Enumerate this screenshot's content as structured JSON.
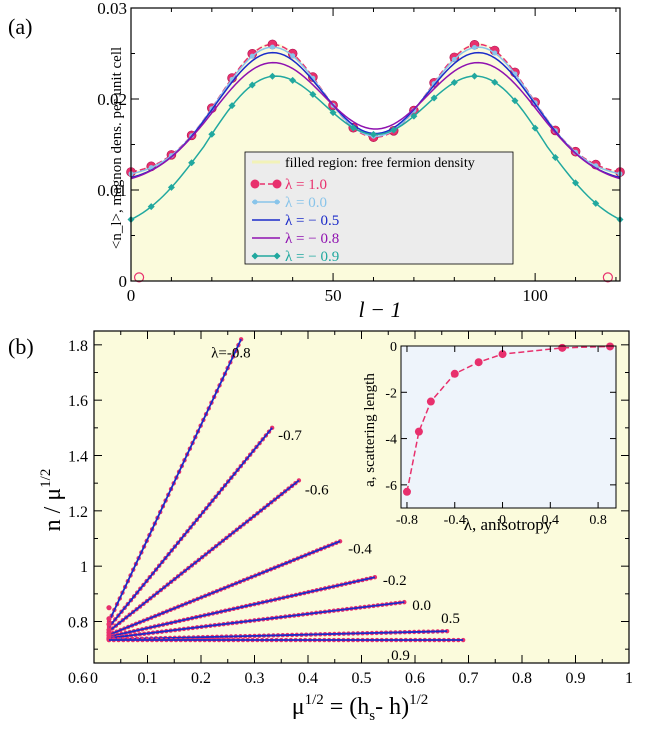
{
  "chart_data": [
    {
      "panel_label": "(a)",
      "type": "line",
      "xlabel": "l − 1",
      "ylabel": "<n_l>, magnon dens. per unit cell",
      "xlim": [
        0,
        121
      ],
      "ylim": [
        0,
        0.03
      ],
      "xticks": [
        0,
        50,
        100
      ],
      "yticks": [
        0,
        0.01,
        0.02,
        0.03
      ],
      "ytick_labels": [
        "0",
        "0.01",
        "0.02",
        "0.03"
      ],
      "grid": false,
      "legend": {
        "placement": "center-bottom",
        "fill_label": "filled region: free fermion density",
        "entries": [
          "λ = 1.0",
          "λ = 0.0",
          "λ = − 0.5",
          "λ = − 0.8",
          "λ = − 0.9"
        ]
      },
      "fill": {
        "color": "#fbfbdc",
        "peak": 0.0262,
        "dip": 0.0157
      },
      "series": [
        {
          "name": "λ = 1.0",
          "color": "#e8306d",
          "marker": "circle",
          "dashed": true,
          "peak": 0.026,
          "dip": 0.0158
        },
        {
          "name": "λ = 0.0",
          "color": "#88c4ea",
          "marker": "small-circle",
          "dashed": false,
          "peak": 0.0257,
          "dip": 0.0159
        },
        {
          "name": "λ = − 0.5",
          "color": "#1b2bc9",
          "marker": "none",
          "dashed": false,
          "peak": 0.0251,
          "dip": 0.0162
        },
        {
          "name": "λ = − 0.8",
          "color": "#8f12b0",
          "marker": "none",
          "dashed": false,
          "peak": 0.024,
          "dip": 0.0167
        },
        {
          "name": "λ = − 0.9",
          "color": "#21a89f",
          "marker": "diamond",
          "dashed": false,
          "peak": 0.0225,
          "dip": 0.0161
        }
      ],
      "x_points": [
        0,
        5,
        10,
        15,
        20,
        25,
        30,
        35,
        40,
        45,
        50,
        55,
        60,
        65,
        70,
        75,
        80,
        85,
        90,
        95,
        100,
        105,
        110,
        115,
        121
      ]
    },
    {
      "panel_label": "(b)",
      "type": "line",
      "xlabel": "μ^1/2 = (h_s − h)^1/2",
      "ylabel": "n / μ^1/2",
      "xlim": [
        0,
        1
      ],
      "ylim": [
        0.65,
        1.85
      ],
      "xticks": [
        0,
        0.1,
        0.2,
        0.3,
        0.4,
        0.5,
        0.6,
        0.7,
        0.8,
        0.9,
        1
      ],
      "xtick_labels": [
        "0",
        "0.1",
        "0.2",
        "0.3",
        "0.4",
        "0.5",
        "0.6",
        "0.7",
        "0.8",
        "0.9",
        "1"
      ],
      "yticks": [
        0.6,
        0.8,
        1,
        1.2,
        1.4,
        1.6,
        1.8
      ],
      "ytick_labels": [
        "0.6",
        "0.8",
        "1",
        "1.2",
        "1.4",
        "1.6",
        "1.8"
      ],
      "grid": false,
      "background": "#fbfbdc",
      "data_color": "#e8306d",
      "fit_color": "#1b2bc9",
      "series": [
        {
          "label": "λ=-0.8",
          "x": [
            0.028,
            0.275
          ],
          "y": [
            0.8,
            1.82
          ],
          "x_first": 0.028,
          "y_first": 0.85
        },
        {
          "label": "-0.7",
          "x": [
            0.028,
            0.333
          ],
          "y": [
            0.78,
            1.5
          ],
          "x_first": 0.028,
          "y_first": 0.81
        },
        {
          "label": "-0.6",
          "x": [
            0.028,
            0.383
          ],
          "y": [
            0.765,
            1.31
          ],
          "x_first": 0.028,
          "y_first": 0.79
        },
        {
          "label": "-0.4",
          "x": [
            0.028,
            0.46
          ],
          "y": [
            0.752,
            1.09
          ],
          "x_first": 0.028,
          "y_first": 0.77
        },
        {
          "label": "-0.2",
          "x": [
            0.028,
            0.525
          ],
          "y": [
            0.745,
            0.96
          ],
          "x_first": 0.028,
          "y_first": 0.76
        },
        {
          "label": "0.0",
          "x": [
            0.028,
            0.58
          ],
          "y": [
            0.74,
            0.87
          ],
          "x_first": 0.028,
          "y_first": 0.75
        },
        {
          "label": "0.5",
          "x": [
            0.028,
            0.66
          ],
          "y": [
            0.735,
            0.765
          ],
          "x_first": 0.028,
          "y_first": 0.74
        },
        {
          "label": "0.9",
          "x": [
            0.028,
            0.69
          ],
          "y": [
            0.733,
            0.733
          ],
          "x_first": 0.028,
          "y_first": 0.735
        }
      ]
    },
    {
      "panel_label": "(b) inset",
      "type": "line",
      "xlabel": "λ, anisotropy",
      "ylabel": "a, scattering length",
      "xlim": [
        -0.85,
        0.95
      ],
      "ylim": [
        -7,
        0
      ],
      "xticks": [
        -0.8,
        -0.4,
        0,
        0.4,
        0.8
      ],
      "xtick_labels": [
        "-0.8",
        "-0.4",
        "0",
        "0.4",
        "0.8"
      ],
      "yticks": [
        -6,
        -4,
        -2,
        0
      ],
      "ytick_labels": [
        "-6",
        "-4",
        "-2",
        "0"
      ],
      "background": "#eef4fb",
      "color": "#e8306d",
      "points": {
        "x": [
          -0.8,
          -0.7,
          -0.6,
          -0.4,
          -0.2,
          0,
          0.5,
          0.9
        ],
        "y": [
          -6.3,
          -3.7,
          -2.4,
          -1.2,
          -0.7,
          -0.35,
          -0.08,
          -0.02
        ]
      }
    }
  ]
}
